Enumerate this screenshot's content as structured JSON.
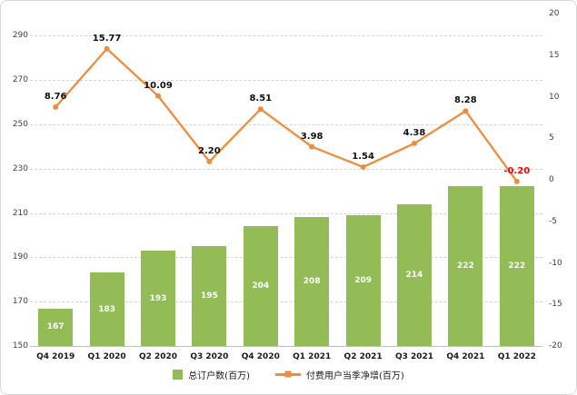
{
  "chart_data": {
    "type": "combo",
    "title": "",
    "categories": [
      "Q4 2019",
      "Q1 2020",
      "Q2 2020",
      "Q3 2020",
      "Q4 2020",
      "Q1 2021",
      "Q2 2021",
      "Q3 2021",
      "Q4 2021",
      "Q1 2022"
    ],
    "series": [
      {
        "name": "总订户数(百万)",
        "chart_type": "bar",
        "axis": "left",
        "color": "#93BC57",
        "values": [
          167,
          183,
          193,
          195,
          204,
          208,
          209,
          214,
          222,
          222
        ],
        "labels": [
          "167",
          "183",
          "193",
          "195",
          "204",
          "208",
          "209",
          "214",
          "222",
          "222"
        ],
        "label_color": "#FFFFFF"
      },
      {
        "name": "付费用户当季净增(百万)",
        "chart_type": "line",
        "axis": "right",
        "color": "#F18C3C",
        "values": [
          8.76,
          15.77,
          10.09,
          2.2,
          8.51,
          3.98,
          1.54,
          4.38,
          8.28,
          -0.2
        ],
        "labels": [
          "8.76",
          "15.77",
          "10.09",
          "2.20",
          "8.51",
          "3.98",
          "1.54",
          "4.38",
          "8.28",
          "-0.20"
        ],
        "label_color": "#111111",
        "negative_label_color": "#FF0000"
      }
    ],
    "left_axis": {
      "min": 150,
      "max": 300,
      "step": 20,
      "tick_values": [
        150,
        170,
        190,
        210,
        230,
        250,
        270,
        290
      ],
      "tick_labels": [
        "150",
        "170",
        "190",
        "210",
        "230",
        "250",
        "270",
        "290"
      ]
    },
    "right_axis": {
      "min": -20,
      "max": 20,
      "step": 5,
      "tick_values": [
        -20,
        -15,
        -10,
        -5,
        0,
        5,
        10,
        15,
        20
      ],
      "tick_labels": [
        "-20",
        "-15",
        "-10",
        "-5",
        "0",
        "5",
        "10",
        "15",
        "20"
      ]
    },
    "grid": true,
    "legend_position": "bottom"
  }
}
